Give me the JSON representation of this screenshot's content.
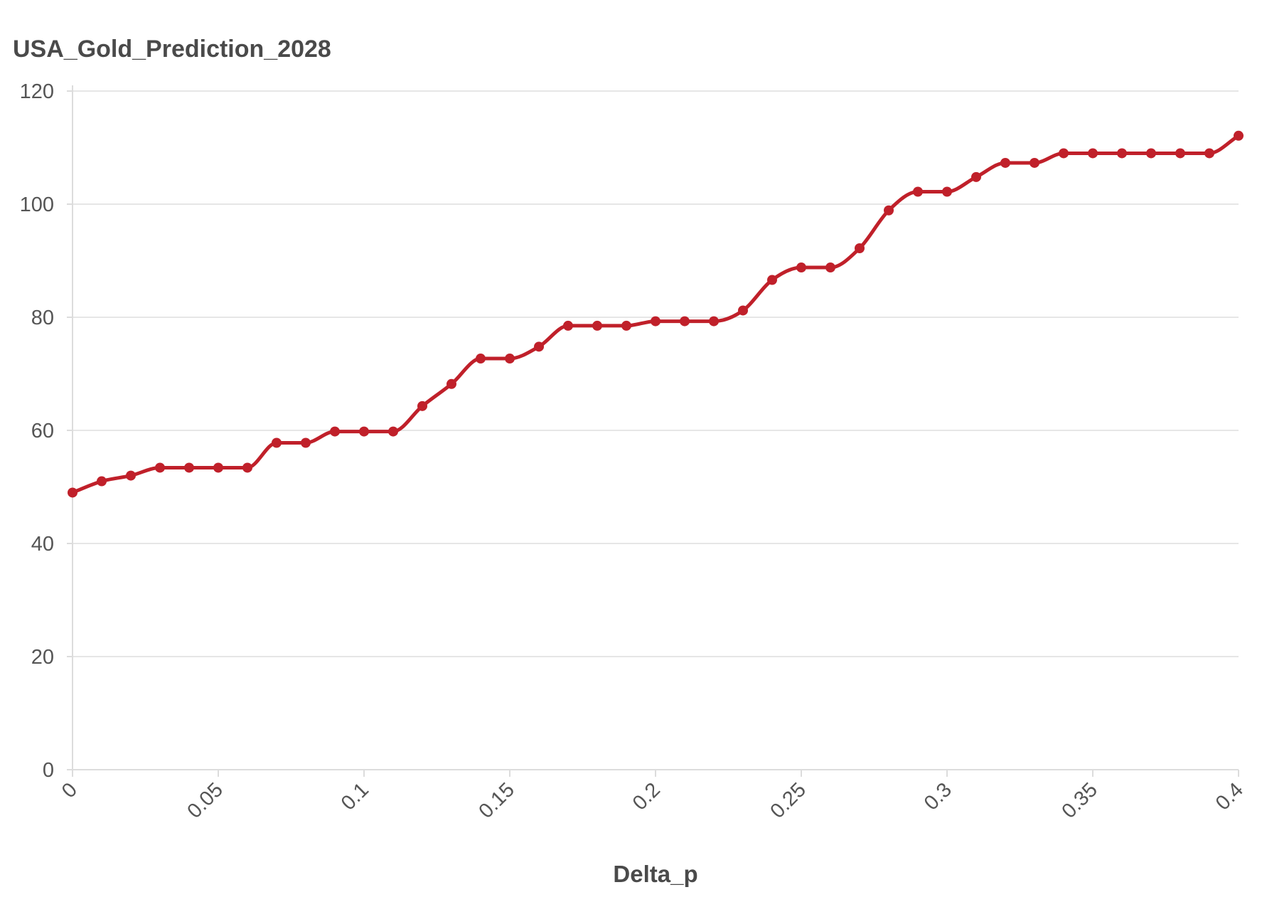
{
  "chart_data": {
    "type": "line",
    "title": "USA_Gold_Prediction_2028",
    "xlabel": "Delta_p",
    "ylabel": "",
    "xlim": [
      0,
      0.4
    ],
    "ylim": [
      0,
      120
    ],
    "x_ticks": [
      "0",
      "0.05",
      "0.1",
      "0.15",
      "0.2",
      "0.25",
      "0.3",
      "0.35",
      "0.4"
    ],
    "y_ticks": [
      "0",
      "20",
      "40",
      "60",
      "80",
      "100",
      "120"
    ],
    "grid": "horizontal",
    "line_color": "#c0202a",
    "smooth": true,
    "x": [
      0,
      0.01,
      0.02,
      0.03,
      0.04,
      0.05,
      0.06,
      0.07,
      0.08,
      0.09,
      0.1,
      0.11,
      0.12,
      0.13,
      0.14,
      0.15,
      0.16,
      0.17,
      0.18,
      0.19,
      0.2,
      0.21,
      0.22,
      0.23,
      0.24,
      0.25,
      0.26,
      0.27,
      0.28,
      0.29,
      0.3,
      0.31,
      0.32,
      0.33,
      0.34,
      0.35,
      0.36,
      0.37,
      0.38,
      0.39,
      0.4
    ],
    "values": [
      49,
      51,
      52,
      53.4,
      53.4,
      53.4,
      53.4,
      57.8,
      57.8,
      59.8,
      59.8,
      59.8,
      64.3,
      68.2,
      72.7,
      72.7,
      74.8,
      78.5,
      78.5,
      78.5,
      79.3,
      79.3,
      79.3,
      81.2,
      86.6,
      88.8,
      88.8,
      92.2,
      98.9,
      102.2,
      102.2,
      104.8,
      107.3,
      107.3,
      109,
      109,
      109,
      109,
      109,
      109,
      112.1
    ]
  }
}
